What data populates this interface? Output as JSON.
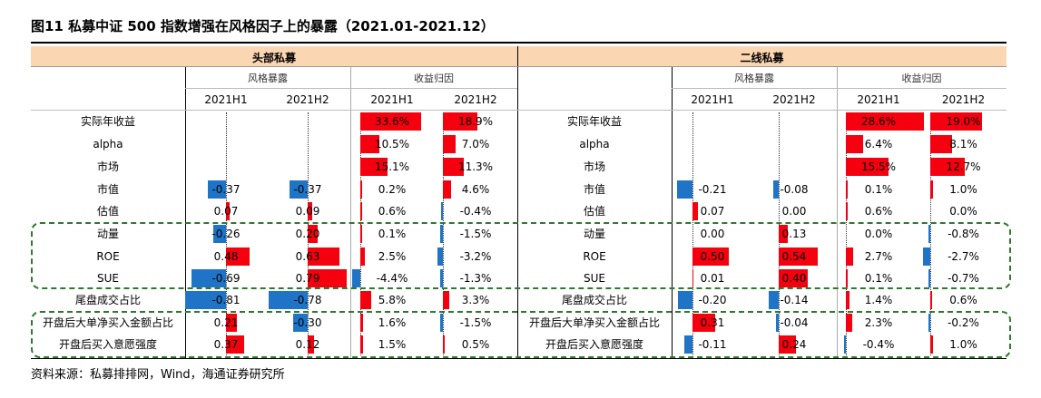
{
  "title": "图11 私募中证 500 指数增强在风格因子上的暴露（2021.01-2021.12）",
  "source": "资料来源：私募排排网，Wind，海通证券研究所",
  "colors": {
    "positive": "#f4000f",
    "negative": "#1f74c7",
    "header_bg": "#fbd6b2",
    "dashed_box": "#2d7a2d"
  },
  "groups": [
    {
      "name": "头部私募",
      "sub_exposure": "风格暴露",
      "sub_return": "收益归因",
      "cols": [
        "2021H1",
        "2021H2",
        "2021H1",
        "2021H2"
      ],
      "rows": [
        {
          "label": "实际年收益",
          "exp": [
            "",
            ""
          ],
          "expv": [
            null,
            null
          ],
          "ret": [
            "33.6%",
            "18.9%"
          ],
          "retv": [
            33.6,
            18.9
          ]
        },
        {
          "label": "alpha",
          "exp": [
            "",
            ""
          ],
          "expv": [
            null,
            null
          ],
          "ret": [
            "10.5%",
            "7.0%"
          ],
          "retv": [
            10.5,
            7.0
          ]
        },
        {
          "label": "市场",
          "exp": [
            "",
            ""
          ],
          "expv": [
            null,
            null
          ],
          "ret": [
            "15.1%",
            "11.3%"
          ],
          "retv": [
            15.1,
            11.3
          ]
        },
        {
          "label": "市值",
          "exp": [
            "-0.37",
            "-0.37"
          ],
          "expv": [
            -0.37,
            -0.37
          ],
          "ret": [
            "0.2%",
            "4.6%"
          ],
          "retv": [
            0.2,
            4.6
          ]
        },
        {
          "label": "估值",
          "exp": [
            "0.07",
            "0.09"
          ],
          "expv": [
            0.07,
            0.09
          ],
          "ret": [
            "0.6%",
            "-0.4%"
          ],
          "retv": [
            0.6,
            -0.4
          ]
        },
        {
          "label": "动量",
          "exp": [
            "-0.26",
            "0.20"
          ],
          "expv": [
            -0.26,
            0.2
          ],
          "ret": [
            "0.1%",
            "-1.5%"
          ],
          "retv": [
            0.1,
            -1.5
          ]
        },
        {
          "label": "ROE",
          "exp": [
            "0.48",
            "0.63"
          ],
          "expv": [
            0.48,
            0.63
          ],
          "ret": [
            "2.5%",
            "-3.2%"
          ],
          "retv": [
            2.5,
            -3.2
          ]
        },
        {
          "label": "SUE",
          "exp": [
            "-0.69",
            "0.79"
          ],
          "expv": [
            -0.69,
            0.79
          ],
          "ret": [
            "-4.4%",
            "-1.3%"
          ],
          "retv": [
            -4.4,
            -1.3
          ]
        },
        {
          "label": "尾盘成交占比",
          "exp": [
            "-0.81",
            "-0.78"
          ],
          "expv": [
            -0.81,
            -0.78
          ],
          "ret": [
            "5.8%",
            "3.3%"
          ],
          "retv": [
            5.8,
            3.3
          ]
        },
        {
          "label": "开盘后大单净买入金额占比",
          "exp": [
            "0.21",
            "-0.30"
          ],
          "expv": [
            0.21,
            -0.3
          ],
          "ret": [
            "1.6%",
            "-1.5%"
          ],
          "retv": [
            1.6,
            -1.5
          ]
        },
        {
          "label": "开盘后买入意愿强度",
          "exp": [
            "0.37",
            "0.12"
          ],
          "expv": [
            0.37,
            0.12
          ],
          "ret": [
            "1.5%",
            "0.5%"
          ],
          "retv": [
            1.5,
            0.5
          ]
        }
      ]
    },
    {
      "name": "二线私募",
      "sub_exposure": "风格暴露",
      "sub_return": "收益归因",
      "cols": [
        "2021H1",
        "2021H2",
        "2021H1",
        "2021H2"
      ],
      "rows": [
        {
          "label": "实际年收益",
          "exp": [
            "",
            ""
          ],
          "expv": [
            null,
            null
          ],
          "ret": [
            "28.6%",
            "19.0%"
          ],
          "retv": [
            28.6,
            19.0
          ]
        },
        {
          "label": "alpha",
          "exp": [
            "",
            ""
          ],
          "expv": [
            null,
            null
          ],
          "ret": [
            "6.4%",
            "8.1%"
          ],
          "retv": [
            6.4,
            8.1
          ]
        },
        {
          "label": "市场",
          "exp": [
            "",
            ""
          ],
          "expv": [
            null,
            null
          ],
          "ret": [
            "15.5%",
            "12.7%"
          ],
          "retv": [
            15.5,
            12.7
          ]
        },
        {
          "label": "市值",
          "exp": [
            "-0.21",
            "-0.08"
          ],
          "expv": [
            -0.21,
            -0.08
          ],
          "ret": [
            "0.1%",
            "1.0%"
          ],
          "retv": [
            0.1,
            1.0
          ]
        },
        {
          "label": "估值",
          "exp": [
            "0.07",
            "0.00"
          ],
          "expv": [
            0.07,
            0.0
          ],
          "ret": [
            "0.6%",
            "0.0%"
          ],
          "retv": [
            0.6,
            0.0
          ]
        },
        {
          "label": "动量",
          "exp": [
            "0.00",
            "0.13"
          ],
          "expv": [
            0.0,
            0.13
          ],
          "ret": [
            "0.0%",
            "-0.8%"
          ],
          "retv": [
            0.0,
            -0.8
          ]
        },
        {
          "label": "ROE",
          "exp": [
            "0.50",
            "0.54"
          ],
          "expv": [
            0.5,
            0.54
          ],
          "ret": [
            "2.7%",
            "-2.7%"
          ],
          "retv": [
            2.7,
            -2.7
          ]
        },
        {
          "label": "SUE",
          "exp": [
            "0.01",
            "0.40"
          ],
          "expv": [
            0.01,
            0.4
          ],
          "ret": [
            "0.1%",
            "-0.7%"
          ],
          "retv": [
            0.1,
            -0.7
          ]
        },
        {
          "label": "尾盘成交占比",
          "exp": [
            "-0.20",
            "-0.14"
          ],
          "expv": [
            -0.2,
            -0.14
          ],
          "ret": [
            "1.4%",
            "0.6%"
          ],
          "retv": [
            1.4,
            0.6
          ]
        },
        {
          "label": "开盘后大单净买入金额占比",
          "exp": [
            "0.31",
            "-0.04"
          ],
          "expv": [
            0.31,
            -0.04
          ],
          "ret": [
            "2.3%",
            "-0.2%"
          ],
          "retv": [
            2.3,
            -0.2
          ]
        },
        {
          "label": "开盘后买入意愿强度",
          "exp": [
            "-0.11",
            "0.24"
          ],
          "expv": [
            -0.11,
            0.24
          ],
          "ret": [
            "-0.4%",
            "1.0%"
          ],
          "retv": [
            -0.4,
            1.0
          ]
        }
      ]
    }
  ]
}
